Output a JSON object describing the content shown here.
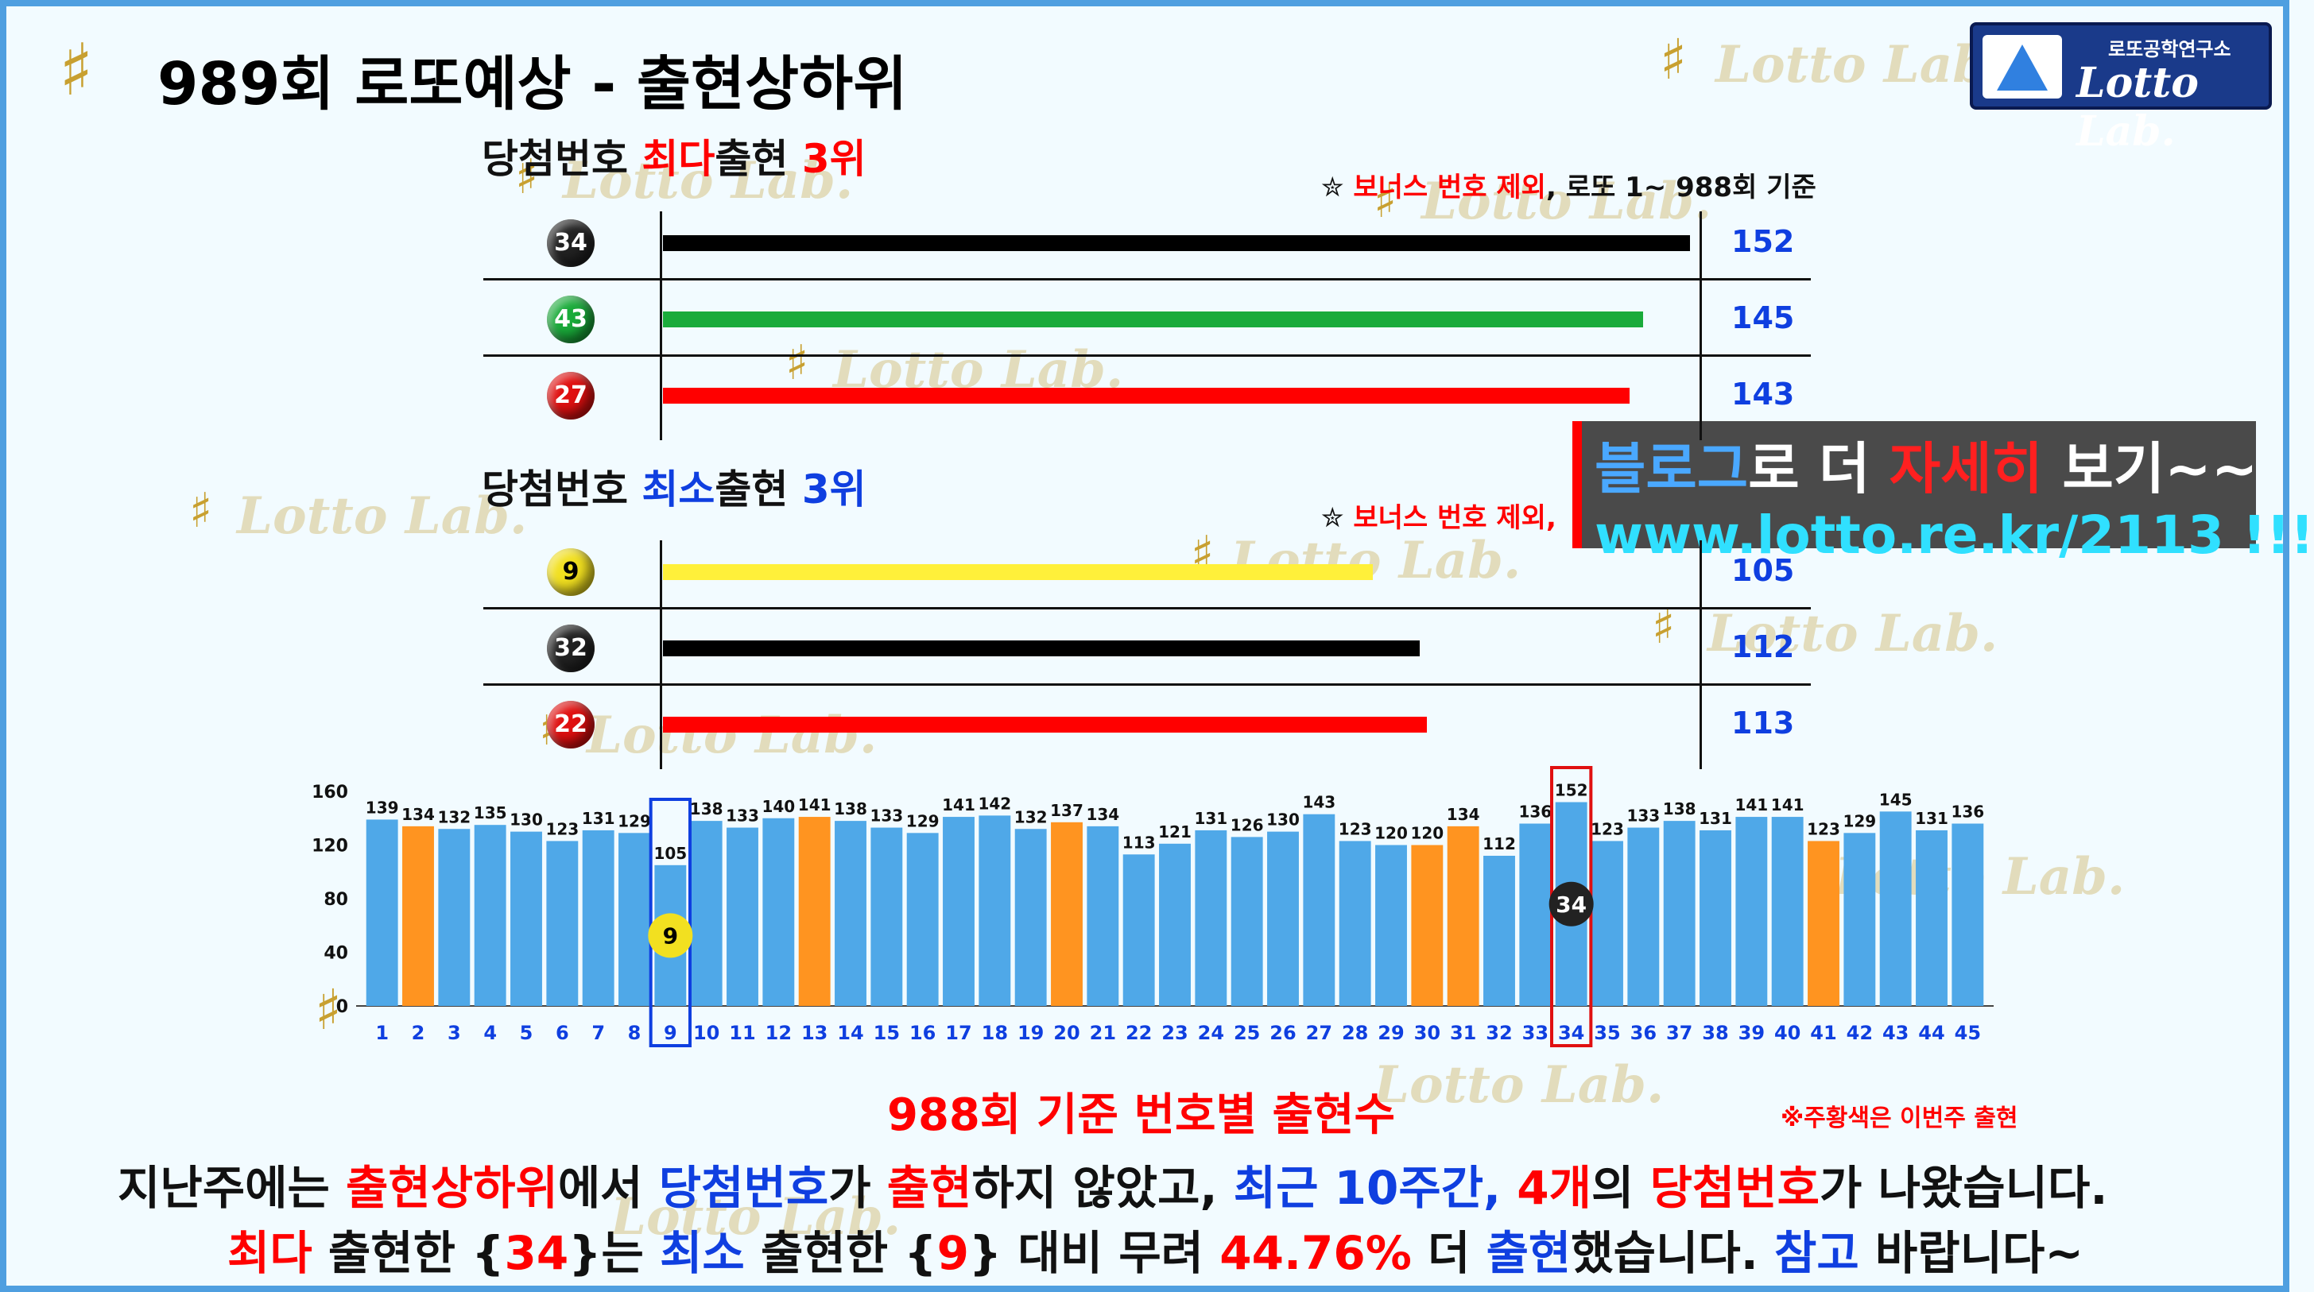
{
  "header": {
    "title": "989회 로또예상 - 출현상하위",
    "logo_small": "로또공학연구소",
    "logo_main": "Lotto Lab.",
    "watermark": "Lotto Lab."
  },
  "top_section": {
    "heading_a": "당첨번호 ",
    "heading_b": "최다",
    "heading_c": "출현 ",
    "heading_d": "3위",
    "note_red": "보너스 번호 제외",
    "note_black": ", 로또 1~ 988회 기준",
    "rows": [
      {
        "ball": "34",
        "value": "152",
        "color": "#000000",
        "ball_color": "#222222"
      },
      {
        "ball": "43",
        "value": "145",
        "color": "#1aab3a",
        "ball_color": "#1aab3a"
      },
      {
        "ball": "27",
        "value": "143",
        "color": "#ff0000",
        "ball_color": "#e01010"
      }
    ]
  },
  "bottom_section": {
    "heading_a": "당첨번호 ",
    "heading_b": "최소",
    "heading_c": "출현 ",
    "heading_d": "3위",
    "note_red": "보너스 번호 제외,",
    "rows": [
      {
        "ball": "9",
        "value": "105",
        "color": "#fff03a",
        "ball_color": "#f2e020",
        "ball_text": "#000000"
      },
      {
        "ball": "32",
        "value": "112",
        "color": "#000000",
        "ball_color": "#222222",
        "ball_text": "#ffffff"
      },
      {
        "ball": "22",
        "value": "113",
        "color": "#ff0000",
        "ball_color": "#e01010",
        "ball_text": "#ffffff"
      }
    ]
  },
  "blog_box": {
    "l1_a": "블로그",
    "l1_b": "로 더 ",
    "l1_c": "자세히",
    "l1_d": " 보기~~",
    "l2": "www.lotto.re.kr/2113 !!!"
  },
  "chart_data": {
    "type": "bar",
    "categories": [
      "1",
      "2",
      "3",
      "4",
      "5",
      "6",
      "7",
      "8",
      "9",
      "10",
      "11",
      "12",
      "13",
      "14",
      "15",
      "16",
      "17",
      "18",
      "19",
      "20",
      "21",
      "22",
      "23",
      "24",
      "25",
      "26",
      "27",
      "28",
      "29",
      "30",
      "31",
      "32",
      "33",
      "34",
      "35",
      "36",
      "37",
      "38",
      "39",
      "40",
      "41",
      "42",
      "43",
      "44",
      "45"
    ],
    "values": [
      139,
      134,
      132,
      135,
      130,
      123,
      131,
      129,
      105,
      138,
      133,
      140,
      141,
      138,
      133,
      129,
      141,
      142,
      132,
      137,
      134,
      113,
      121,
      131,
      126,
      130,
      143,
      123,
      120,
      120,
      134,
      112,
      136,
      152,
      123,
      133,
      138,
      131,
      141,
      141,
      123,
      129,
      145,
      131,
      136
    ],
    "highlight": [
      false,
      true,
      false,
      false,
      false,
      false,
      false,
      false,
      false,
      false,
      false,
      false,
      true,
      false,
      false,
      false,
      false,
      false,
      false,
      true,
      false,
      false,
      false,
      false,
      false,
      false,
      false,
      false,
      false,
      true,
      true,
      false,
      false,
      false,
      false,
      false,
      false,
      false,
      false,
      false,
      true,
      false,
      false,
      false,
      false
    ],
    "yticks": [
      "0",
      "40",
      "80",
      "120",
      "160"
    ],
    "ylim": [
      0,
      160
    ],
    "colors": {
      "normal": "#4fa8e8",
      "highlight": "#ff9420"
    },
    "boxed": [
      {
        "number": "9",
        "ball": "9",
        "color": "#0f3fe0"
      },
      {
        "number": "34",
        "ball": "34",
        "color": "#e01010"
      }
    ],
    "title": "988회 기준 번호별 출현수",
    "note": "※주황색은 이번주 출현"
  },
  "paragraph": {
    "p1": [
      {
        "t": "지난주에는 ",
        "c": "#111111"
      },
      {
        "t": "출현상하위",
        "c": "#ff0000"
      },
      {
        "t": "에서 ",
        "c": "#111111"
      },
      {
        "t": "당첨번호",
        "c": "#0f3fe0"
      },
      {
        "t": "가 ",
        "c": "#111111"
      },
      {
        "t": "출현",
        "c": "#ff0000"
      },
      {
        "t": "하지 않았고, ",
        "c": "#111111"
      },
      {
        "t": "최근 10주간, ",
        "c": "#0f3fe0"
      },
      {
        "t": "4개",
        "c": "#ff0000"
      },
      {
        "t": "의 ",
        "c": "#111111"
      },
      {
        "t": "당첨번호",
        "c": "#ff0000"
      },
      {
        "t": "가 나왔습니다.",
        "c": "#111111"
      }
    ],
    "p2": [
      {
        "t": "최다",
        "c": "#ff0000"
      },
      {
        "t": " 출현한 {",
        "c": "#111111"
      },
      {
        "t": "34",
        "c": "#ff0000"
      },
      {
        "t": "}는 ",
        "c": "#111111"
      },
      {
        "t": "최소",
        "c": "#0f3fe0"
      },
      {
        "t": " 출현한 {",
        "c": "#111111"
      },
      {
        "t": "9",
        "c": "#ff0000"
      },
      {
        "t": "} 대비 무려 ",
        "c": "#111111"
      },
      {
        "t": "44.76%",
        "c": "#ff0000"
      },
      {
        "t": " 더 ",
        "c": "#111111"
      },
      {
        "t": "출현",
        "c": "#0f3fe0"
      },
      {
        "t": "했습니다. ",
        "c": "#111111"
      },
      {
        "t": "참고",
        "c": "#0f3fe0"
      },
      {
        "t": " 바랍니다~",
        "c": "#111111"
      }
    ]
  }
}
